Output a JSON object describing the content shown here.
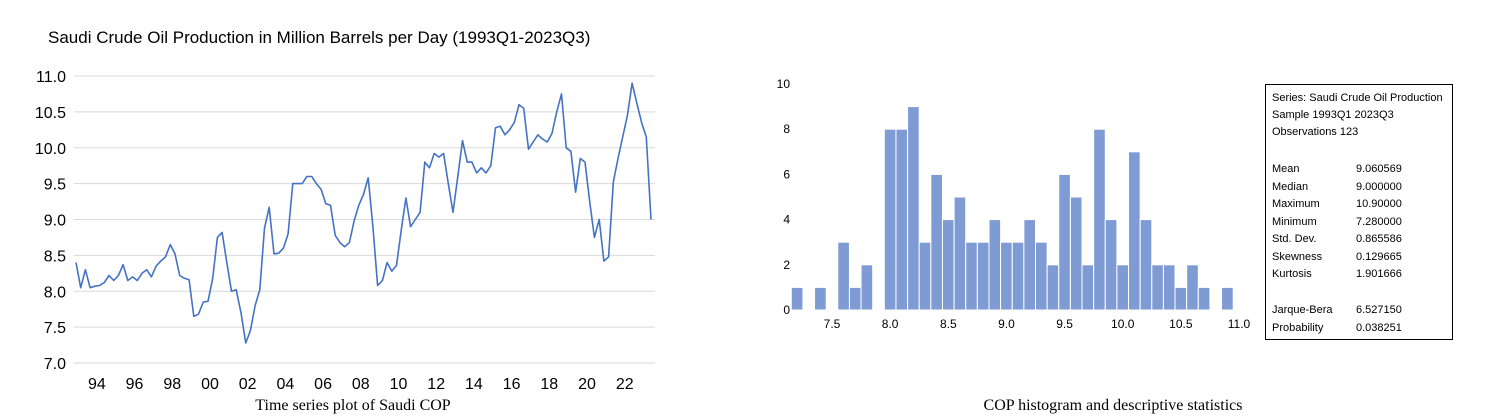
{
  "chart_data": [
    {
      "type": "line",
      "title": "Saudi Crude Oil Production in Million Barrels per Day (1993Q1-2023Q3)",
      "caption": "Time series plot of Saudi COP",
      "ylim": [
        7.0,
        11.0
      ],
      "yticks": [
        "7.0",
        "7.5",
        "8.0",
        "8.5",
        "9.0",
        "9.5",
        "10.0",
        "10.5",
        "11.0"
      ],
      "xticks": [
        "94",
        "96",
        "98",
        "00",
        "02",
        "04",
        "06",
        "08",
        "10",
        "12",
        "14",
        "16",
        "18",
        "20",
        "22"
      ],
      "grid": "horizontal",
      "line_color": "#4472c4",
      "series": [
        {
          "values": [
            8.4,
            8.05,
            8.3,
            8.05,
            8.07,
            8.08,
            8.12,
            8.22,
            8.15,
            8.22,
            8.37,
            8.15,
            8.2,
            8.15,
            8.25,
            8.3,
            8.2,
            8.35,
            8.42,
            8.48,
            8.65,
            8.52,
            8.22,
            8.18,
            8.16,
            7.65,
            7.68,
            7.85,
            7.86,
            8.18,
            8.75,
            8.82,
            8.4,
            8.0,
            8.02,
            7.7,
            7.28,
            7.45,
            7.8,
            8.02,
            8.88,
            9.17,
            8.52,
            8.53,
            8.6,
            8.8,
            9.5,
            9.5,
            9.5,
            9.6,
            9.6,
            9.5,
            9.42,
            9.22,
            9.2,
            8.78,
            8.68,
            8.62,
            8.68,
            8.98,
            9.2,
            9.35,
            9.58,
            8.9,
            8.08,
            8.15,
            8.4,
            8.28,
            8.36,
            8.85,
            9.3,
            8.9,
            9.0,
            9.1,
            9.8,
            9.72,
            9.92,
            9.87,
            9.92,
            9.5,
            9.1,
            9.6,
            10.1,
            9.8,
            9.8,
            9.65,
            9.72,
            9.65,
            9.75,
            10.28,
            10.3,
            10.18,
            10.25,
            10.35,
            10.6,
            10.55,
            9.98,
            10.08,
            10.18,
            10.12,
            10.08,
            10.2,
            10.5,
            10.75,
            10.0,
            9.95,
            9.38,
            9.85,
            9.8,
            9.25,
            8.75,
            9.0,
            8.42,
            8.48,
            9.52,
            9.85,
            10.15,
            10.45,
            10.9,
            10.62,
            10.35,
            10.15,
            9.0
          ]
        }
      ]
    },
    {
      "type": "bar",
      "caption": "COP histogram and descriptive statistics",
      "ylim": [
        0,
        10
      ],
      "yticks": [
        "0",
        "2",
        "4",
        "6",
        "8",
        "10"
      ],
      "xticks": [
        "7.5",
        "8.0",
        "8.5",
        "9.0",
        "9.5",
        "10.0",
        "10.5",
        "11.0"
      ],
      "bar_color": "#7f9bd3",
      "bin_start": 7.2,
      "bin_width": 0.1,
      "values": [
        1,
        0,
        1,
        0,
        3,
        1,
        2,
        0,
        8,
        8,
        9,
        3,
        6,
        4,
        5,
        3,
        3,
        4,
        3,
        3,
        4,
        3,
        2,
        6,
        5,
        2,
        8,
        4,
        2,
        7,
        4,
        2,
        2,
        1,
        2,
        1,
        0,
        1
      ]
    }
  ],
  "stats": {
    "header": [
      "Series: Saudi Crude Oil Production",
      "Sample 1993Q1 2023Q3",
      "Observations 123"
    ],
    "rows": [
      {
        "label": "Mean",
        "value": "9.060569"
      },
      {
        "label": "Median",
        "value": "9.000000"
      },
      {
        "label": "Maximum",
        "value": "10.90000"
      },
      {
        "label": "Minimum",
        "value": "7.280000"
      },
      {
        "label": "Std. Dev.",
        "value": "0.865586"
      },
      {
        "label": "Skewness",
        "value": "0.129665"
      },
      {
        "label": "Kurtosis",
        "value": "1.901666"
      }
    ],
    "tests": [
      {
        "label": "Jarque-Bera",
        "value": "6.527150"
      },
      {
        "label": "Probability",
        "value": "0.038251"
      }
    ]
  }
}
